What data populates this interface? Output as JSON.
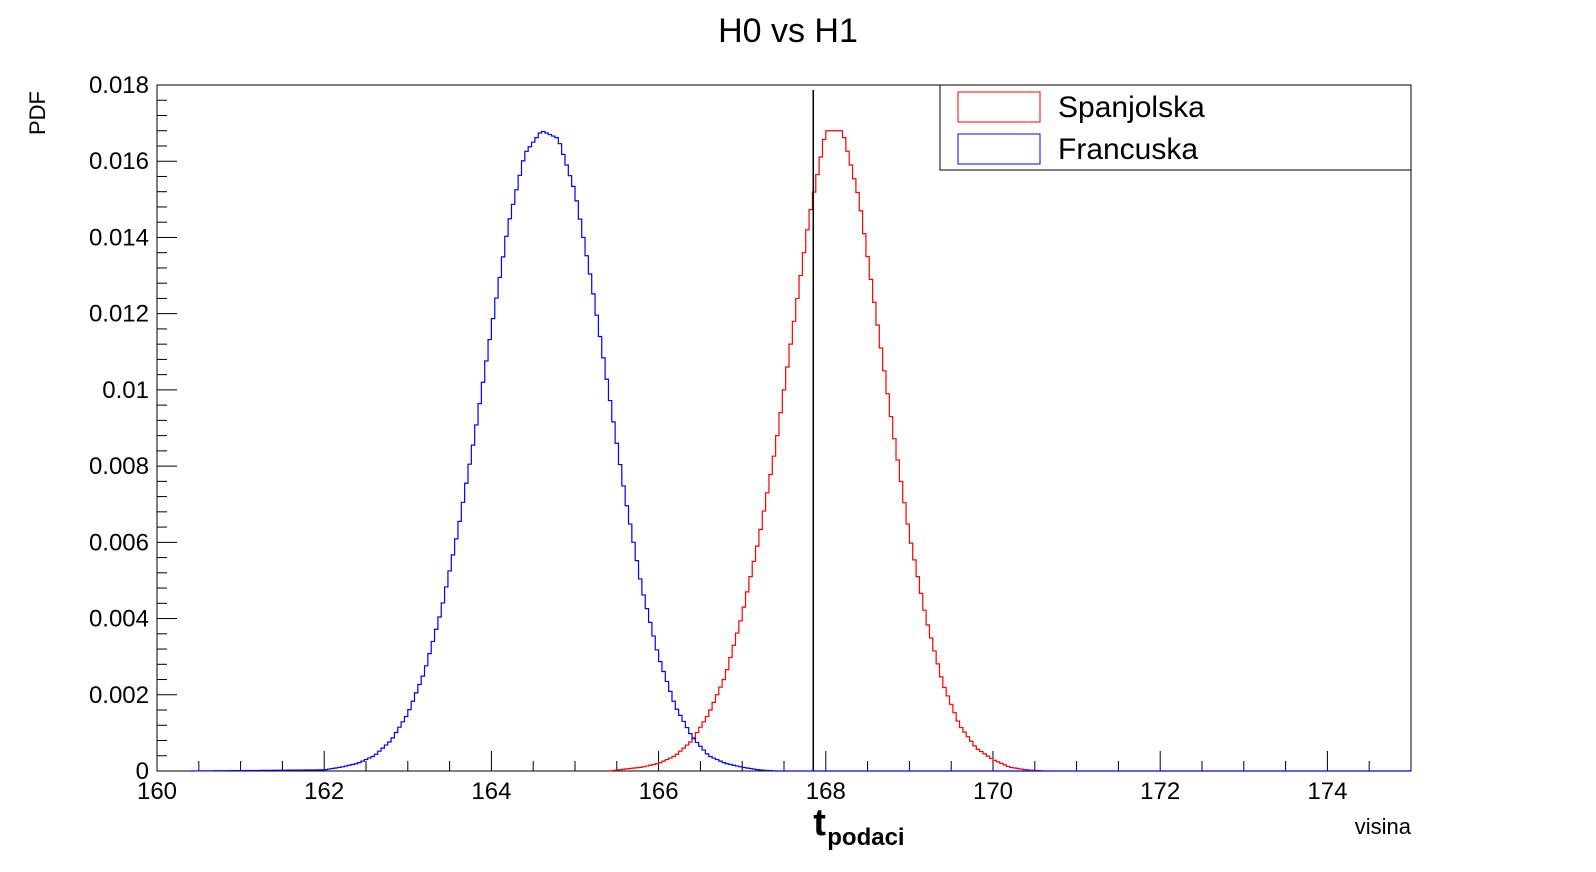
{
  "chart_data": {
    "type": "line",
    "title": "H0 vs H1",
    "xlabel": "visina",
    "ylabel": "PDF",
    "xlim": [
      160,
      175
    ],
    "ylim": [
      0,
      0.018
    ],
    "x_ticks": [
      160,
      162,
      164,
      166,
      168,
      170,
      172,
      174
    ],
    "x_tick_labels": [
      "160",
      "162",
      "164",
      "166",
      "168",
      "170",
      "172",
      "174"
    ],
    "y_ticks": [
      0,
      0.002,
      0.004,
      0.006,
      0.008,
      0.01,
      0.012,
      0.014,
      0.016,
      0.018
    ],
    "y_tick_labels": [
      "0",
      "0.002",
      "0.004",
      "0.006",
      "0.008",
      "0.01",
      "0.012",
      "0.014",
      "0.016",
      "0.018"
    ],
    "grid": false,
    "legend_position": "top-right",
    "series": [
      {
        "name": "Spanjolska",
        "color": "#ff0000",
        "x": [
          165.4,
          165.6,
          165.8,
          166.0,
          166.2,
          166.4,
          166.6,
          166.8,
          167.0,
          167.2,
          167.4,
          167.6,
          167.8,
          168.0,
          168.2,
          168.4,
          168.6,
          168.8,
          169.0,
          169.2,
          169.4,
          169.6,
          169.8,
          170.0,
          170.2,
          170.4,
          170.6
        ],
        "y": [
          0.0,
          5e-05,
          0.0001,
          0.0002,
          0.0004,
          0.0008,
          0.0015,
          0.0025,
          0.0041,
          0.0061,
          0.0085,
          0.0115,
          0.0145,
          0.0168,
          0.0168,
          0.015,
          0.012,
          0.009,
          0.0062,
          0.004,
          0.0023,
          0.0012,
          0.0006,
          0.0003,
          0.0001,
          3e-05,
          0.0
        ]
      },
      {
        "name": "Francuska",
        "color": "#0000ff",
        "x": [
          160.4,
          162.0,
          162.2,
          162.4,
          162.6,
          162.8,
          163.0,
          163.2,
          163.4,
          163.6,
          163.8,
          164.0,
          164.2,
          164.4,
          164.6,
          164.8,
          165.0,
          165.2,
          165.4,
          165.6,
          165.8,
          166.0,
          166.2,
          166.4,
          166.6,
          166.8,
          167.0,
          167.2,
          167.4,
          175.0
        ],
        "y": [
          0.0,
          3e-05,
          0.0001,
          0.0002,
          0.0004,
          0.0008,
          0.0015,
          0.0026,
          0.0042,
          0.0063,
          0.0088,
          0.0116,
          0.0143,
          0.0162,
          0.0168,
          0.0166,
          0.0152,
          0.0128,
          0.01,
          0.0072,
          0.0048,
          0.003,
          0.0017,
          0.0009,
          0.0004,
          0.0002,
          0.0001,
          3e-05,
          0.0,
          0.0
        ]
      }
    ],
    "annotations": [
      {
        "text": "t",
        "subscript": "podaci",
        "x": 167.85
      }
    ]
  }
}
